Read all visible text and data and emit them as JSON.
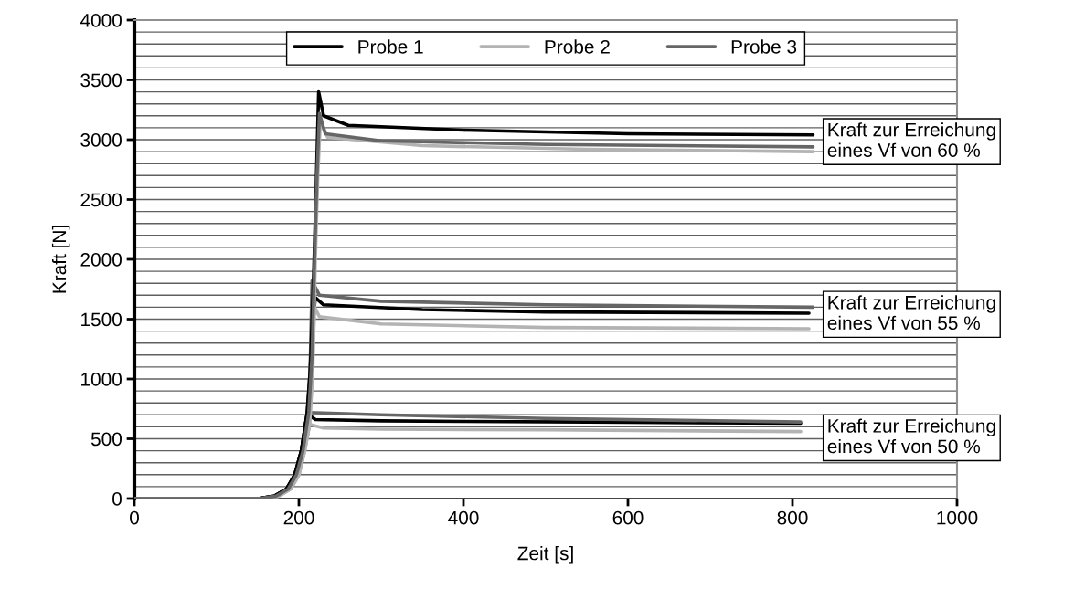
{
  "chart_data": {
    "type": "line",
    "xlabel": "Zeit [s]",
    "ylabel": "Kraft [N]",
    "xlim": [
      0,
      1000
    ],
    "xticks": [
      0,
      200,
      400,
      600,
      800,
      1000
    ],
    "ylim": [
      0,
      4000
    ],
    "yticks": [
      0,
      {
        "value": 100,
        "label": null
      },
      {
        "value": 200,
        "label": null
      },
      {
        "value": 300,
        "label": null
      },
      {
        "value": 400,
        "label": null
      },
      500,
      {
        "value": 600,
        "label": null
      },
      {
        "value": 700,
        "label": null
      },
      {
        "value": 800,
        "label": null
      },
      {
        "value": 900,
        "label": null
      },
      1000,
      {
        "value": 1100,
        "label": null
      },
      {
        "value": 1200,
        "label": null
      },
      {
        "value": 1300,
        "label": null
      },
      {
        "value": 1400,
        "label": null
      },
      1500,
      {
        "value": 1600,
        "label": null
      },
      {
        "value": 1700,
        "label": null
      },
      {
        "value": 1800,
        "label": null
      },
      {
        "value": 1900,
        "label": null
      },
      2000,
      {
        "value": 2100,
        "label": null
      },
      {
        "value": 2200,
        "label": null
      },
      {
        "value": 2300,
        "label": null
      },
      {
        "value": 2400,
        "label": null
      },
      2500,
      {
        "value": 2600,
        "label": null
      },
      {
        "value": 2700,
        "label": null
      },
      {
        "value": 2800,
        "label": null
      },
      {
        "value": 2900,
        "label": null
      },
      3000,
      {
        "value": 3100,
        "label": null
      },
      {
        "value": 3200,
        "label": null
      },
      {
        "value": 3300,
        "label": null
      },
      {
        "value": 3400,
        "label": null
      },
      3500,
      {
        "value": 3600,
        "label": null
      },
      {
        "value": 3700,
        "label": null
      },
      {
        "value": 3800,
        "label": null
      },
      {
        "value": 3900,
        "label": null
      },
      4000
    ],
    "grid": "y",
    "legend": "top",
    "marker": "none",
    "line_style": "solid",
    "series": [
      {
        "name": "Probe 1",
        "color": "#000000",
        "x": [
          0,
          150,
          170,
          185,
          195,
          203,
          210,
          220,
          300,
          400,
          600,
          810
        ],
        "values": [
          0,
          0,
          20,
          80,
          200,
          400,
          710,
          660,
          650,
          645,
          638,
          630
        ]
      },
      {
        "name": "Probe 2",
        "color": "#b3b3b3",
        "x": [
          0,
          155,
          175,
          190,
          200,
          207,
          213,
          230,
          300,
          500,
          810
        ],
        "values": [
          0,
          0,
          20,
          80,
          200,
          400,
          620,
          590,
          580,
          575,
          560
        ]
      },
      {
        "name": "Probe 3",
        "color": "#666666",
        "x": [
          0,
          152,
          172,
          187,
          197,
          205,
          212,
          300,
          500,
          810
        ],
        "values": [
          0,
          0,
          20,
          80,
          200,
          400,
          720,
          700,
          670,
          640
        ]
      },
      {
        "color": "#000000",
        "x": [
          0,
          150,
          170,
          185,
          195,
          203,
          210,
          213,
          216,
          220,
          230,
          350,
          500,
          820
        ],
        "values": [
          0,
          0,
          20,
          80,
          200,
          400,
          710,
          1000,
          1400,
          1680,
          1620,
          1580,
          1560,
          1550
        ]
      },
      {
        "color": "#b3b3b3",
        "x": [
          0,
          155,
          175,
          190,
          200,
          207,
          213,
          216,
          219,
          225,
          300,
          500,
          820
        ],
        "values": [
          0,
          0,
          20,
          80,
          200,
          400,
          620,
          1000,
          1600,
          1520,
          1460,
          1430,
          1420
        ]
      },
      {
        "color": "#666666",
        "x": [
          0,
          152,
          172,
          187,
          197,
          205,
          212,
          214,
          216,
          225,
          300,
          500,
          825
        ],
        "values": [
          0,
          0,
          20,
          80,
          200,
          400,
          720,
          1200,
          1820,
          1700,
          1650,
          1620,
          1600
        ]
      },
      {
        "color": "#000000",
        "x": [
          0,
          150,
          170,
          185,
          195,
          203,
          210,
          214,
          218,
          221,
          224,
          230,
          260,
          400,
          600,
          825
        ],
        "values": [
          0,
          0,
          20,
          80,
          200,
          400,
          710,
          1100,
          1900,
          2600,
          3400,
          3200,
          3120,
          3080,
          3050,
          3040
        ]
      },
      {
        "color": "#b3b3b3",
        "x": [
          0,
          155,
          175,
          190,
          200,
          207,
          213,
          217,
          220,
          223,
          226,
          235,
          350,
          550,
          825
        ],
        "values": [
          0,
          0,
          20,
          80,
          200,
          400,
          620,
          1100,
          2000,
          2700,
          3150,
          3020,
          2950,
          2920,
          2900
        ]
      },
      {
        "color": "#666666",
        "x": [
          0,
          152,
          172,
          187,
          197,
          205,
          212,
          216,
          219,
          222,
          225,
          232,
          300,
          500,
          825
        ],
        "values": [
          0,
          0,
          20,
          80,
          200,
          400,
          720,
          1200,
          2000,
          2700,
          3220,
          3050,
          2990,
          2960,
          2940
        ]
      }
    ],
    "annotations": [
      "Kraft zur Erreichung\neines Vf von 60 %",
      "Kraft zur Erreichung\neines Vf von 55 %",
      "Kraft zur Erreichung\neines Vf von 50 %"
    ]
  }
}
